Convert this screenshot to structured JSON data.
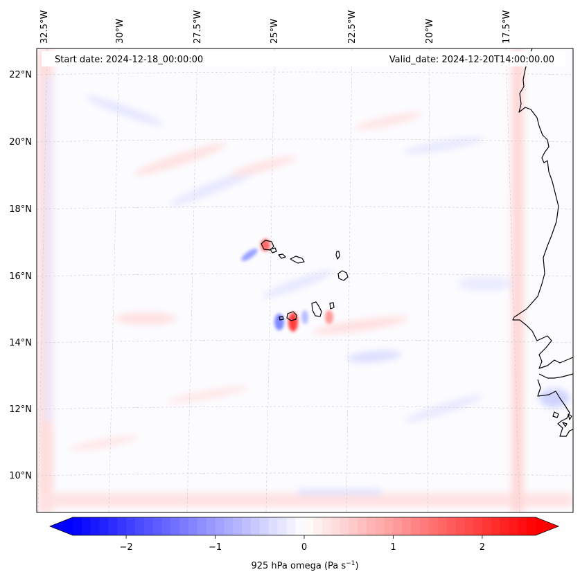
{
  "map": {
    "start_label": "Start date: 2024-12-18_00:00:00",
    "valid_label": "Valid_date: 2024-12-20T14:00:00.00",
    "lon_labels": [
      "32.5°W",
      "30°W",
      "27.5°W",
      "25°W",
      "22.5°W",
      "20°W",
      "17.5°W"
    ],
    "lat_labels": [
      "22°N",
      "20°N",
      "18°N",
      "16°N",
      "14°N",
      "12°N",
      "10°N"
    ],
    "field": "925 hPa omega",
    "units": "Pa s⁻¹"
  },
  "colorbar": {
    "label": "925 hPa omega (Pa s",
    "label_exp": "−1",
    "label_close": ")",
    "ticks": [
      "−2",
      "−1",
      "0",
      "1",
      "2"
    ],
    "tick_values": [
      -2,
      -1,
      0,
      1,
      2
    ],
    "range": [
      -2.6,
      2.6
    ],
    "colormap": "bwr",
    "color_low": "#0000ff",
    "color_mid": "#ffffff",
    "color_high": "#ff0000"
  },
  "colors": {
    "coastline": "#000000",
    "gridline": "#c8c8c8"
  }
}
